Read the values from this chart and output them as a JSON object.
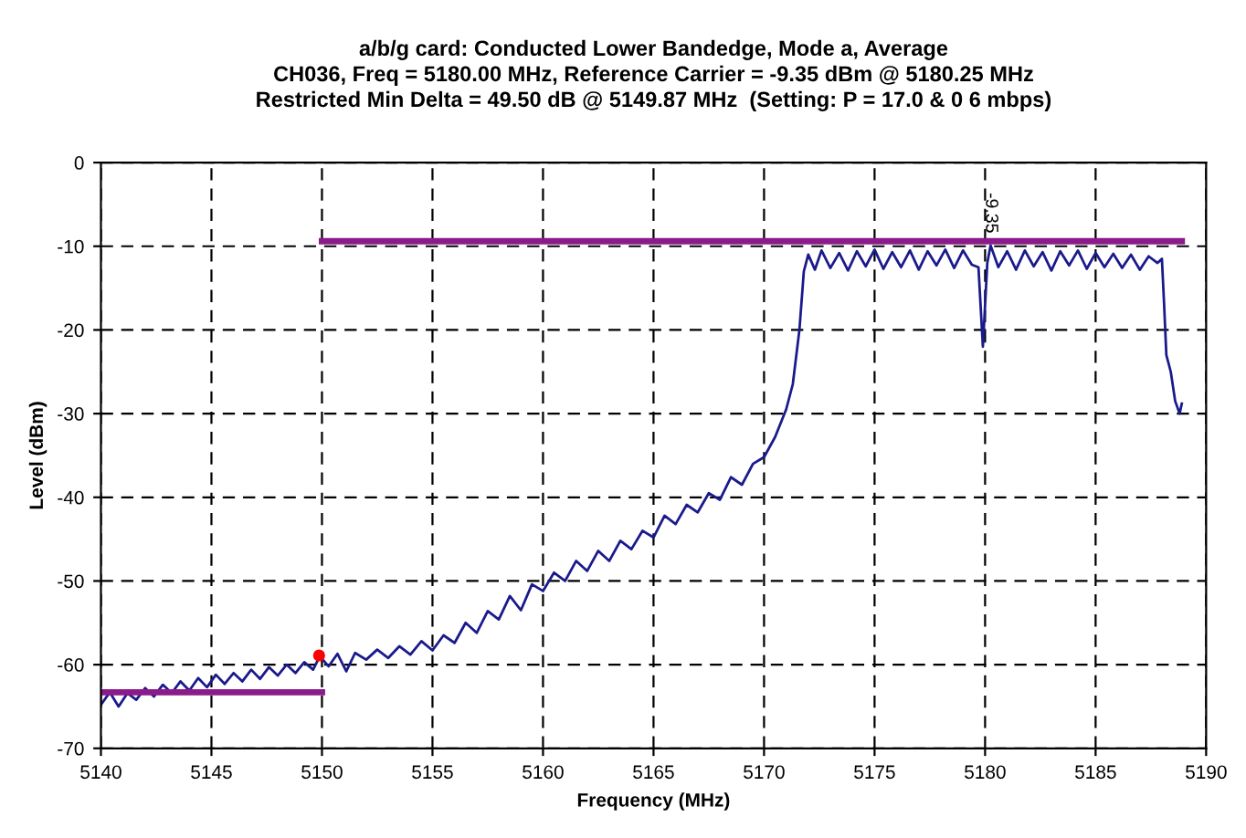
{
  "chart_data": {
    "type": "line",
    "title": "a/b/g card: Conducted Lower Bandedge, Mode a, Average\nCH036, Freq = 5180.00 MHz, Reference Carrier = -9.35 dBm @ 5180.25 MHz\nRestricted Min Delta = 49.50 dB @ 5149.87 MHz  (Setting: P = 17.0 & 0 6 mbps)",
    "xlabel": "Frequency (MHz)",
    "ylabel": "Level (dBm)",
    "xlim": [
      5140,
      5190
    ],
    "xticks": [
      5140,
      5145,
      5150,
      5155,
      5160,
      5165,
      5170,
      5175,
      5180,
      5185,
      5190
    ],
    "ylim": [
      -70,
      0
    ],
    "yticks": [
      -70,
      -60,
      -50,
      -40,
      -30,
      -20,
      -10,
      0
    ],
    "grid": true,
    "legend": false,
    "annotations": [
      {
        "text": "-9.35",
        "x": 5180.25,
        "y": -9.35
      }
    ],
    "series": [
      {
        "color": "#1a1a8c",
        "x": [
          5140,
          5140.4,
          5140.8,
          5141.2,
          5141.6,
          5142,
          5142.4,
          5142.8,
          5143.2,
          5143.6,
          5144,
          5144.4,
          5144.8,
          5145.2,
          5145.6,
          5146,
          5146.4,
          5146.8,
          5147.2,
          5147.6,
          5148,
          5148.4,
          5148.8,
          5149.2,
          5149.6,
          5149.9,
          5150.3,
          5150.7,
          5151.1,
          5151.5,
          5152,
          5152.5,
          5153,
          5153.5,
          5154,
          5154.5,
          5155,
          5155.5,
          5156,
          5156.5,
          5157,
          5157.5,
          5158,
          5158.5,
          5159,
          5159.5,
          5160,
          5160.5,
          5161,
          5161.5,
          5162,
          5162.5,
          5163,
          5163.5,
          5164,
          5164.5,
          5165,
          5165.5,
          5166,
          5166.5,
          5167,
          5167.5,
          5168,
          5168.5,
          5169,
          5169.5,
          5170,
          5170.5,
          5171,
          5171.3,
          5171.6,
          5171.8,
          5172,
          5172.3,
          5172.6,
          5173,
          5173.4,
          5173.8,
          5174.2,
          5174.6,
          5175,
          5175.4,
          5175.8,
          5176.2,
          5176.6,
          5177,
          5177.4,
          5177.8,
          5178.2,
          5178.6,
          5179,
          5179.4,
          5179.7,
          5179.9,
          5180.1,
          5180.25,
          5180.6,
          5181,
          5181.4,
          5181.8,
          5182.2,
          5182.6,
          5183,
          5183.4,
          5183.8,
          5184.2,
          5184.6,
          5185,
          5185.4,
          5185.8,
          5186.2,
          5186.6,
          5187,
          5187.4,
          5187.8,
          5188,
          5188.1,
          5188.2,
          5188.4,
          5188.6,
          5188.8,
          5188.9
        ],
        "values": [
          -64.8,
          -63.3,
          -65.0,
          -63.4,
          -64.2,
          -62.8,
          -63.8,
          -62.4,
          -63.4,
          -62.0,
          -63.1,
          -61.6,
          -62.7,
          -61.2,
          -62.3,
          -61.0,
          -62.0,
          -60.6,
          -61.7,
          -60.3,
          -61.3,
          -60.0,
          -61.0,
          -59.7,
          -60.6,
          -59.0,
          -60.2,
          -58.7,
          -60.8,
          -58.6,
          -59.4,
          -58.2,
          -59.2,
          -57.8,
          -58.8,
          -57.2,
          -58.3,
          -56.5,
          -57.4,
          -55.0,
          -56.2,
          -53.6,
          -54.6,
          -51.8,
          -53.5,
          -50.4,
          -51.2,
          -49.0,
          -50.0,
          -47.6,
          -48.8,
          -46.4,
          -47.6,
          -45.2,
          -46.2,
          -44.0,
          -44.8,
          -42.2,
          -43.2,
          -40.9,
          -41.8,
          -39.5,
          -40.3,
          -37.6,
          -38.5,
          -36.0,
          -35.2,
          -32.8,
          -29.5,
          -26.5,
          -20,
          -13,
          -11,
          -12.8,
          -10.5,
          -12.6,
          -10.8,
          -12.9,
          -10.6,
          -12.4,
          -10.4,
          -12.7,
          -10.7,
          -12.5,
          -10.5,
          -12.8,
          -10.6,
          -12.3,
          -10.4,
          -12.6,
          -10.5,
          -12.2,
          -12.5,
          -22,
          -12,
          -9.9,
          -12.5,
          -10.6,
          -12.8,
          -10.5,
          -12.4,
          -10.7,
          -12.9,
          -10.6,
          -12.3,
          -10.5,
          -12.7,
          -10.8,
          -12.5,
          -10.9,
          -12.6,
          -11.0,
          -12.8,
          -11.2,
          -12.0,
          -11.5,
          -17,
          -23,
          -25,
          -28.5,
          -30,
          -28.8
        ]
      },
      {
        "color": "#8b1a8b",
        "x": [
          5150,
          5188.9
        ],
        "values": [
          -9.4,
          -9.4
        ]
      },
      {
        "color": "#8b1a8b",
        "x": [
          5140,
          5150
        ],
        "values": [
          -63.3,
          -63.3
        ]
      },
      {
        "type": "scatter",
        "color": "#ff0000",
        "x": [
          5149.87
        ],
        "values": [
          -58.9
        ]
      }
    ]
  }
}
